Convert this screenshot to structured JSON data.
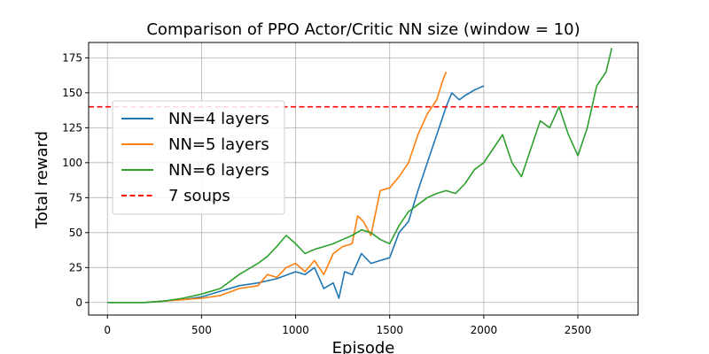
{
  "chart_data": {
    "type": "line",
    "title": "Comparison of PPO Actor/Critic NN size (window = 10)",
    "xlabel": "Episode",
    "ylabel": "Total reward",
    "xlim": [
      -100,
      2820
    ],
    "ylim": [
      -9,
      186
    ],
    "xticks": [
      0,
      500,
      1000,
      1500,
      2000,
      2500
    ],
    "yticks": [
      0,
      25,
      50,
      75,
      100,
      125,
      150,
      175
    ],
    "grid": true,
    "legend_position": "center-left",
    "series": [
      {
        "name": "NN=4 layers",
        "color": "#1f77b4",
        "style": "solid",
        "x": [
          0,
          100,
          200,
          300,
          400,
          500,
          600,
          700,
          800,
          900,
          1000,
          1050,
          1100,
          1150,
          1200,
          1230,
          1260,
          1300,
          1350,
          1400,
          1450,
          1500,
          1550,
          1600,
          1650,
          1700,
          1750,
          1800,
          1830,
          1870,
          1900,
          1950,
          2000
        ],
        "values": [
          0,
          0,
          0,
          1,
          2,
          4,
          8,
          12,
          14,
          17,
          22,
          20,
          25,
          10,
          14,
          3,
          22,
          20,
          35,
          28,
          30,
          32,
          50,
          58,
          80,
          100,
          120,
          140,
          150,
          145,
          148,
          152,
          155
        ]
      },
      {
        "name": "NN=5 layers",
        "color": "#ff7f0e",
        "style": "solid",
        "x": [
          200,
          300,
          400,
          500,
          600,
          700,
          800,
          850,
          900,
          950,
          1000,
          1050,
          1100,
          1150,
          1200,
          1250,
          1300,
          1330,
          1360,
          1400,
          1450,
          1500,
          1550,
          1600,
          1650,
          1700,
          1750,
          1780,
          1800
        ],
        "values": [
          0,
          1,
          2,
          3,
          5,
          10,
          12,
          20,
          18,
          25,
          28,
          22,
          30,
          20,
          35,
          40,
          42,
          62,
          58,
          48,
          80,
          82,
          90,
          100,
          120,
          135,
          145,
          158,
          165
        ]
      },
      {
        "name": "NN=6 layers",
        "color": "#2ca02c",
        "style": "solid",
        "x": [
          0,
          100,
          200,
          300,
          400,
          500,
          600,
          700,
          800,
          850,
          900,
          950,
          1000,
          1050,
          1100,
          1150,
          1200,
          1250,
          1300,
          1350,
          1400,
          1450,
          1500,
          1550,
          1600,
          1650,
          1700,
          1750,
          1800,
          1850,
          1900,
          1950,
          2000,
          2050,
          2100,
          2150,
          2200,
          2250,
          2300,
          2350,
          2400,
          2450,
          2500,
          2550,
          2600,
          2650,
          2680
        ],
        "values": [
          0,
          0,
          0,
          1,
          3,
          6,
          10,
          20,
          28,
          33,
          40,
          48,
          42,
          35,
          38,
          40,
          42,
          45,
          48,
          52,
          50,
          45,
          42,
          55,
          65,
          70,
          75,
          78,
          80,
          78,
          85,
          95,
          100,
          110,
          120,
          100,
          90,
          110,
          130,
          125,
          140,
          120,
          105,
          125,
          155,
          165,
          182
        ]
      },
      {
        "name": "7 soups",
        "color": "#ff0000",
        "style": "dashed",
        "x": [
          -100,
          2820
        ],
        "values": [
          140,
          140
        ]
      }
    ]
  }
}
